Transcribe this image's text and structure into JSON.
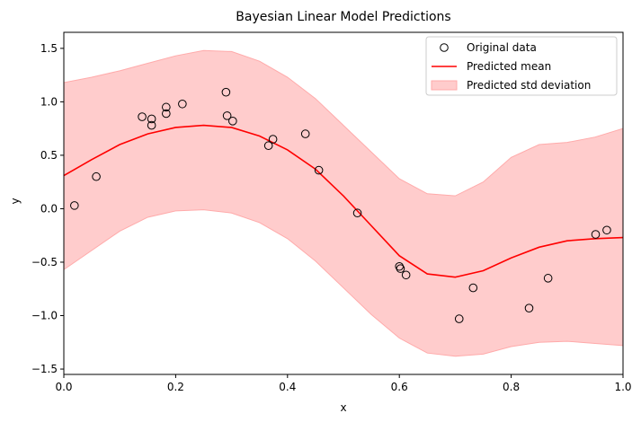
{
  "chart_data": {
    "type": "line",
    "title": "Bayesian Linear Model Predictions",
    "xlabel": "x",
    "ylabel": "y",
    "xlim": [
      0.0,
      1.0
    ],
    "ylim": [
      -1.55,
      1.65
    ],
    "xticks": [
      0.0,
      0.2,
      0.4,
      0.6,
      0.8,
      1.0
    ],
    "xtick_labels": [
      "0.0",
      "0.2",
      "0.4",
      "0.6",
      "0.8",
      "1.0"
    ],
    "yticks": [
      -1.5,
      -1.0,
      -0.5,
      0.0,
      0.5,
      1.0,
      1.5
    ],
    "ytick_labels": [
      "−1.5",
      "−1.0",
      "−0.5",
      "0.0",
      "0.5",
      "1.0",
      "1.5"
    ],
    "grid": false,
    "legend_position": "top-right",
    "colors": {
      "data_marker_edge": "#000000",
      "mean_line": "#ff0000",
      "std_band": "#ffcccc",
      "std_band_edge": "#ffaaaa"
    },
    "series": [
      {
        "name": "Original data",
        "kind": "scatter",
        "x": [
          0.019,
          0.058,
          0.14,
          0.157,
          0.157,
          0.183,
          0.183,
          0.212,
          0.29,
          0.292,
          0.302,
          0.366,
          0.374,
          0.432,
          0.456,
          0.525,
          0.6,
          0.602,
          0.612,
          0.707,
          0.732,
          0.832,
          0.866,
          0.951,
          0.971
        ],
        "y": [
          0.03,
          0.3,
          0.86,
          0.78,
          0.84,
          0.89,
          0.95,
          0.98,
          1.09,
          0.87,
          0.82,
          0.59,
          0.65,
          0.7,
          0.36,
          -0.04,
          -0.54,
          -0.56,
          -0.62,
          -1.03,
          -0.74,
          -0.93,
          -0.65,
          -0.24,
          -0.2
        ]
      },
      {
        "name": "Predicted mean",
        "kind": "line",
        "x": [
          0.0,
          0.05,
          0.1,
          0.15,
          0.2,
          0.25,
          0.3,
          0.35,
          0.4,
          0.45,
          0.5,
          0.55,
          0.6,
          0.65,
          0.7,
          0.75,
          0.8,
          0.85,
          0.9,
          0.95,
          1.0
        ],
        "y": [
          0.31,
          0.46,
          0.6,
          0.7,
          0.76,
          0.78,
          0.76,
          0.68,
          0.55,
          0.37,
          0.12,
          -0.16,
          -0.44,
          -0.61,
          -0.64,
          -0.58,
          -0.46,
          -0.36,
          -0.3,
          -0.28,
          -0.27
        ]
      },
      {
        "name": "Predicted std deviation",
        "kind": "band",
        "x": [
          0.0,
          0.05,
          0.1,
          0.15,
          0.2,
          0.25,
          0.3,
          0.35,
          0.4,
          0.45,
          0.5,
          0.55,
          0.6,
          0.65,
          0.7,
          0.75,
          0.8,
          0.85,
          0.9,
          0.95,
          1.0
        ],
        "lower": [
          -0.57,
          -0.39,
          -0.21,
          -0.08,
          -0.02,
          -0.01,
          -0.04,
          -0.13,
          -0.28,
          -0.49,
          -0.74,
          -0.99,
          -1.21,
          -1.35,
          -1.38,
          -1.36,
          -1.29,
          -1.25,
          -1.24,
          -1.26,
          -1.28
        ],
        "upper": [
          1.18,
          1.23,
          1.29,
          1.36,
          1.43,
          1.48,
          1.47,
          1.38,
          1.23,
          1.03,
          0.78,
          0.53,
          0.28,
          0.14,
          0.12,
          0.25,
          0.48,
          0.6,
          0.62,
          0.67,
          0.75
        ]
      }
    ]
  }
}
